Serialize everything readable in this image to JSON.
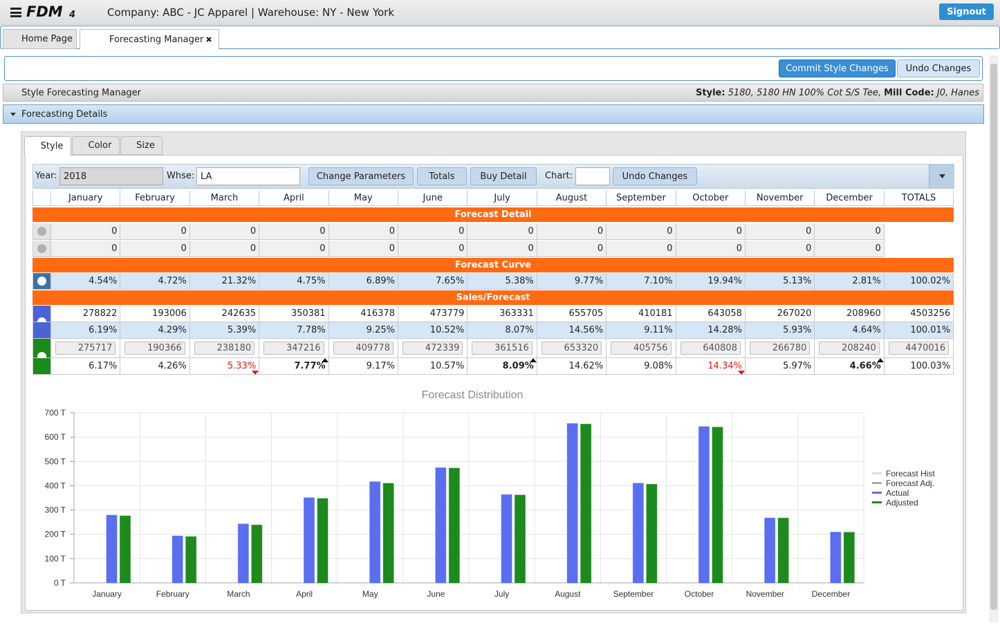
{
  "header": {
    "logo": "FDM",
    "logo_sub": "4",
    "company": "Company: ABC - JC Apparel",
    "warehouse": "| Warehouse: NY - New York",
    "signout": "Signout"
  },
  "tabs": [
    "Home Page",
    "Forecasting Manager"
  ],
  "actions": [
    "Commit Style Changes",
    "Undo Changes"
  ],
  "style_panel": {
    "title": "Style Forecasting Manager",
    "style_label": "Style:",
    "style_value": "5180, 5180 HN 100% Cot S/S Tee,",
    "mill_label": "Mill Code:",
    "mill_value": "J0, Hanes"
  },
  "details_panel": {
    "title": "Forecasting Details"
  },
  "subtabs": [
    "Style",
    "Color",
    "Size"
  ],
  "filters": {
    "year_label": "Year:",
    "year": "2018",
    "whse_label": "Whse:",
    "whse": "LA",
    "buttons": [
      "Change Parameters",
      "Totals",
      "Buy Detail"
    ],
    "chart_label": "Chart:",
    "undo": "Undo Changes"
  },
  "table": {
    "columns": [
      "January",
      "February",
      "March",
      "April",
      "May",
      "June",
      "July",
      "August",
      "September",
      "October",
      "November",
      "December",
      "TOTALS"
    ],
    "sections": [
      {
        "title": "Forecast Detail",
        "rows": [
          [
            "0",
            "0",
            "0",
            "0",
            "0",
            "0",
            "0",
            "0",
            "0",
            "0",
            "0",
            "0"
          ],
          [
            "0",
            "0",
            "0",
            "0",
            "0",
            "0",
            "0",
            "0",
            "0",
            "0",
            "0",
            "0"
          ]
        ]
      },
      {
        "title": "Forecast Curve",
        "rows": [
          [
            "4.54%",
            "4.72%",
            "21.32%",
            "4.75%",
            "6.89%",
            "7.65%",
            "5.38%",
            "9.77%",
            "7.10%",
            "19.94%",
            "5.13%",
            "2.81%",
            "100.02%"
          ]
        ]
      },
      {
        "title": "Sales/Forecast",
        "rows": [
          [
            "278822",
            "193006",
            "242635",
            "350381",
            "416378",
            "473779",
            "363331",
            "655705",
            "410181",
            "643058",
            "267020",
            "208960",
            "4503256"
          ],
          [
            "6.19%",
            "4.29%",
            "5.39%",
            "7.78%",
            "9.25%",
            "10.52%",
            "8.07%",
            "14.56%",
            "9.11%",
            "14.28%",
            "5.93%",
            "4.64%",
            "100.01%"
          ],
          [
            "275717",
            "190366",
            "238180",
            "347216",
            "409778",
            "472339",
            "361516",
            "653320",
            "405756",
            "640808",
            "266780",
            "208240",
            "4470016"
          ],
          [
            "6.17%",
            "4.26%",
            "5.33%",
            "7.77%",
            "9.17%",
            "10.57%",
            "8.09%",
            "14.62%",
            "9.08%",
            "14.34%",
            "5.97%",
            "4.66%",
            "100.03%"
          ]
        ]
      }
    ],
    "trend": [
      null,
      null,
      "down",
      "up",
      null,
      null,
      "up",
      null,
      null,
      "down",
      null,
      "up",
      null
    ]
  },
  "chart_data": {
    "type": "bar",
    "title": "Forecast Distribution",
    "categories": [
      "January",
      "February",
      "March",
      "April",
      "May",
      "June",
      "July",
      "August",
      "September",
      "October",
      "November",
      "December"
    ],
    "series": [
      {
        "name": "Forecast Hist",
        "color": "#dddddd",
        "values": [
          0,
          0,
          0,
          0,
          0,
          0,
          0,
          0,
          0,
          0,
          0,
          0
        ]
      },
      {
        "name": "Forecast Adj.",
        "color": "#aaaaaa",
        "values": [
          0,
          0,
          0,
          0,
          0,
          0,
          0,
          0,
          0,
          0,
          0,
          0
        ]
      },
      {
        "name": "Actual",
        "color": "#5a6ef0",
        "values": [
          278822,
          193006,
          242635,
          350381,
          416378,
          473779,
          363331,
          655705,
          410181,
          643058,
          267020,
          208960
        ]
      },
      {
        "name": "Adjusted",
        "color": "#1d8a1d",
        "values": [
          275717,
          190366,
          238180,
          347216,
          409778,
          472339,
          361516,
          653320,
          405756,
          640808,
          266780,
          208240
        ]
      }
    ],
    "ylim": [
      0,
      700000
    ],
    "yticks": [
      {
        "value": 0,
        "label": "0 T"
      },
      {
        "value": 100000,
        "label": "100 T"
      },
      {
        "value": 200000,
        "label": "200 T"
      },
      {
        "value": 300000,
        "label": "300 T"
      },
      {
        "value": 400000,
        "label": "400 T"
      },
      {
        "value": 500000,
        "label": "500 T"
      },
      {
        "value": 600000,
        "label": "600 T"
      },
      {
        "value": 700000,
        "label": "700 T"
      }
    ],
    "grid": true,
    "legend": "right"
  }
}
